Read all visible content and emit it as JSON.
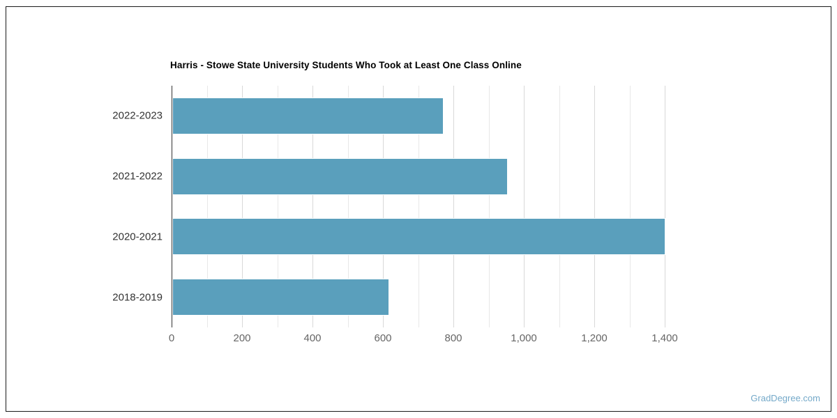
{
  "chart_data": {
    "type": "bar",
    "orientation": "horizontal",
    "title": "Harris - Stowe State University Students Who Took at Least One Class Online",
    "categories": [
      "2022-2023",
      "2021-2022",
      "2020-2021",
      "2018-2019"
    ],
    "values": [
      770,
      953,
      1400,
      615
    ],
    "xlabel": "",
    "ylabel": "",
    "xlim": [
      0,
      1400
    ],
    "x_major_ticks": [
      0,
      200,
      400,
      600,
      800,
      1000,
      1200,
      1400
    ],
    "x_major_tick_labels": [
      "0",
      "200",
      "400",
      "600",
      "800",
      "1,000",
      "1,200",
      "1,400"
    ],
    "x_minor_step": 100,
    "grid": true,
    "legend": false
  },
  "watermark": {
    "text": "GradDegree.com"
  },
  "colors": {
    "bar_fill": "#5A9FBC",
    "bar_border": "#FFFFFF",
    "grid_major": "#D8D8D8",
    "grid_minor": "#E8E8E8",
    "axis_line": "#333333",
    "title_text": "#000000",
    "category_label": "#333333",
    "tick_label": "#666666",
    "watermark_text": "#74A9C9",
    "frame_border": "#1A1A1A",
    "background": "#FFFFFF"
  }
}
